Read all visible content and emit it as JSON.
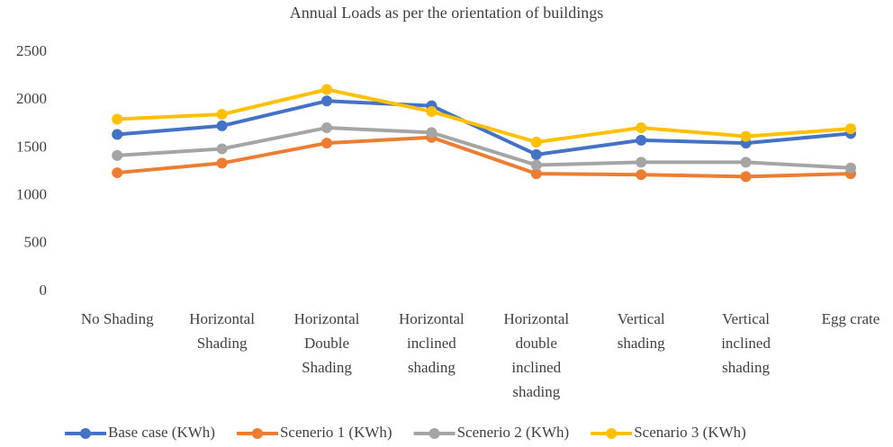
{
  "chart_data": {
    "type": "line",
    "title": "Annual Loads as per the orientation of buildings",
    "categories": [
      "No Shading",
      "Horizontal Shading",
      "Horizontal Double Shading",
      "Horizontal inclined shading",
      "Horizontal double inclined shading",
      "Vertical shading",
      "Vertical inclined shading",
      "Egg crate"
    ],
    "series": [
      {
        "name": "Base case (KWh)",
        "color": "#4472c4",
        "values": [
          1640,
          1730,
          1990,
          1940,
          1430,
          1580,
          1550,
          1650
        ]
      },
      {
        "name": "Scenerio 1 (KWh)",
        "color": "#ed7d31",
        "values": [
          1240,
          1340,
          1550,
          1610,
          1230,
          1220,
          1200,
          1230
        ]
      },
      {
        "name": "Scenerio 2 (KWh)",
        "color": "#a5a5a5",
        "values": [
          1420,
          1490,
          1710,
          1660,
          1320,
          1350,
          1350,
          1290
        ]
      },
      {
        "name": "Scenario 3 (KWh)",
        "color": "#ffc000",
        "values": [
          1800,
          1850,
          2110,
          1880,
          1560,
          1710,
          1620,
          1700
        ]
      }
    ],
    "ylim": [
      0,
      2500
    ],
    "yticks": [
      0,
      500,
      1000,
      1500,
      2000,
      2500
    ],
    "grid": false,
    "legend": "bottom"
  }
}
